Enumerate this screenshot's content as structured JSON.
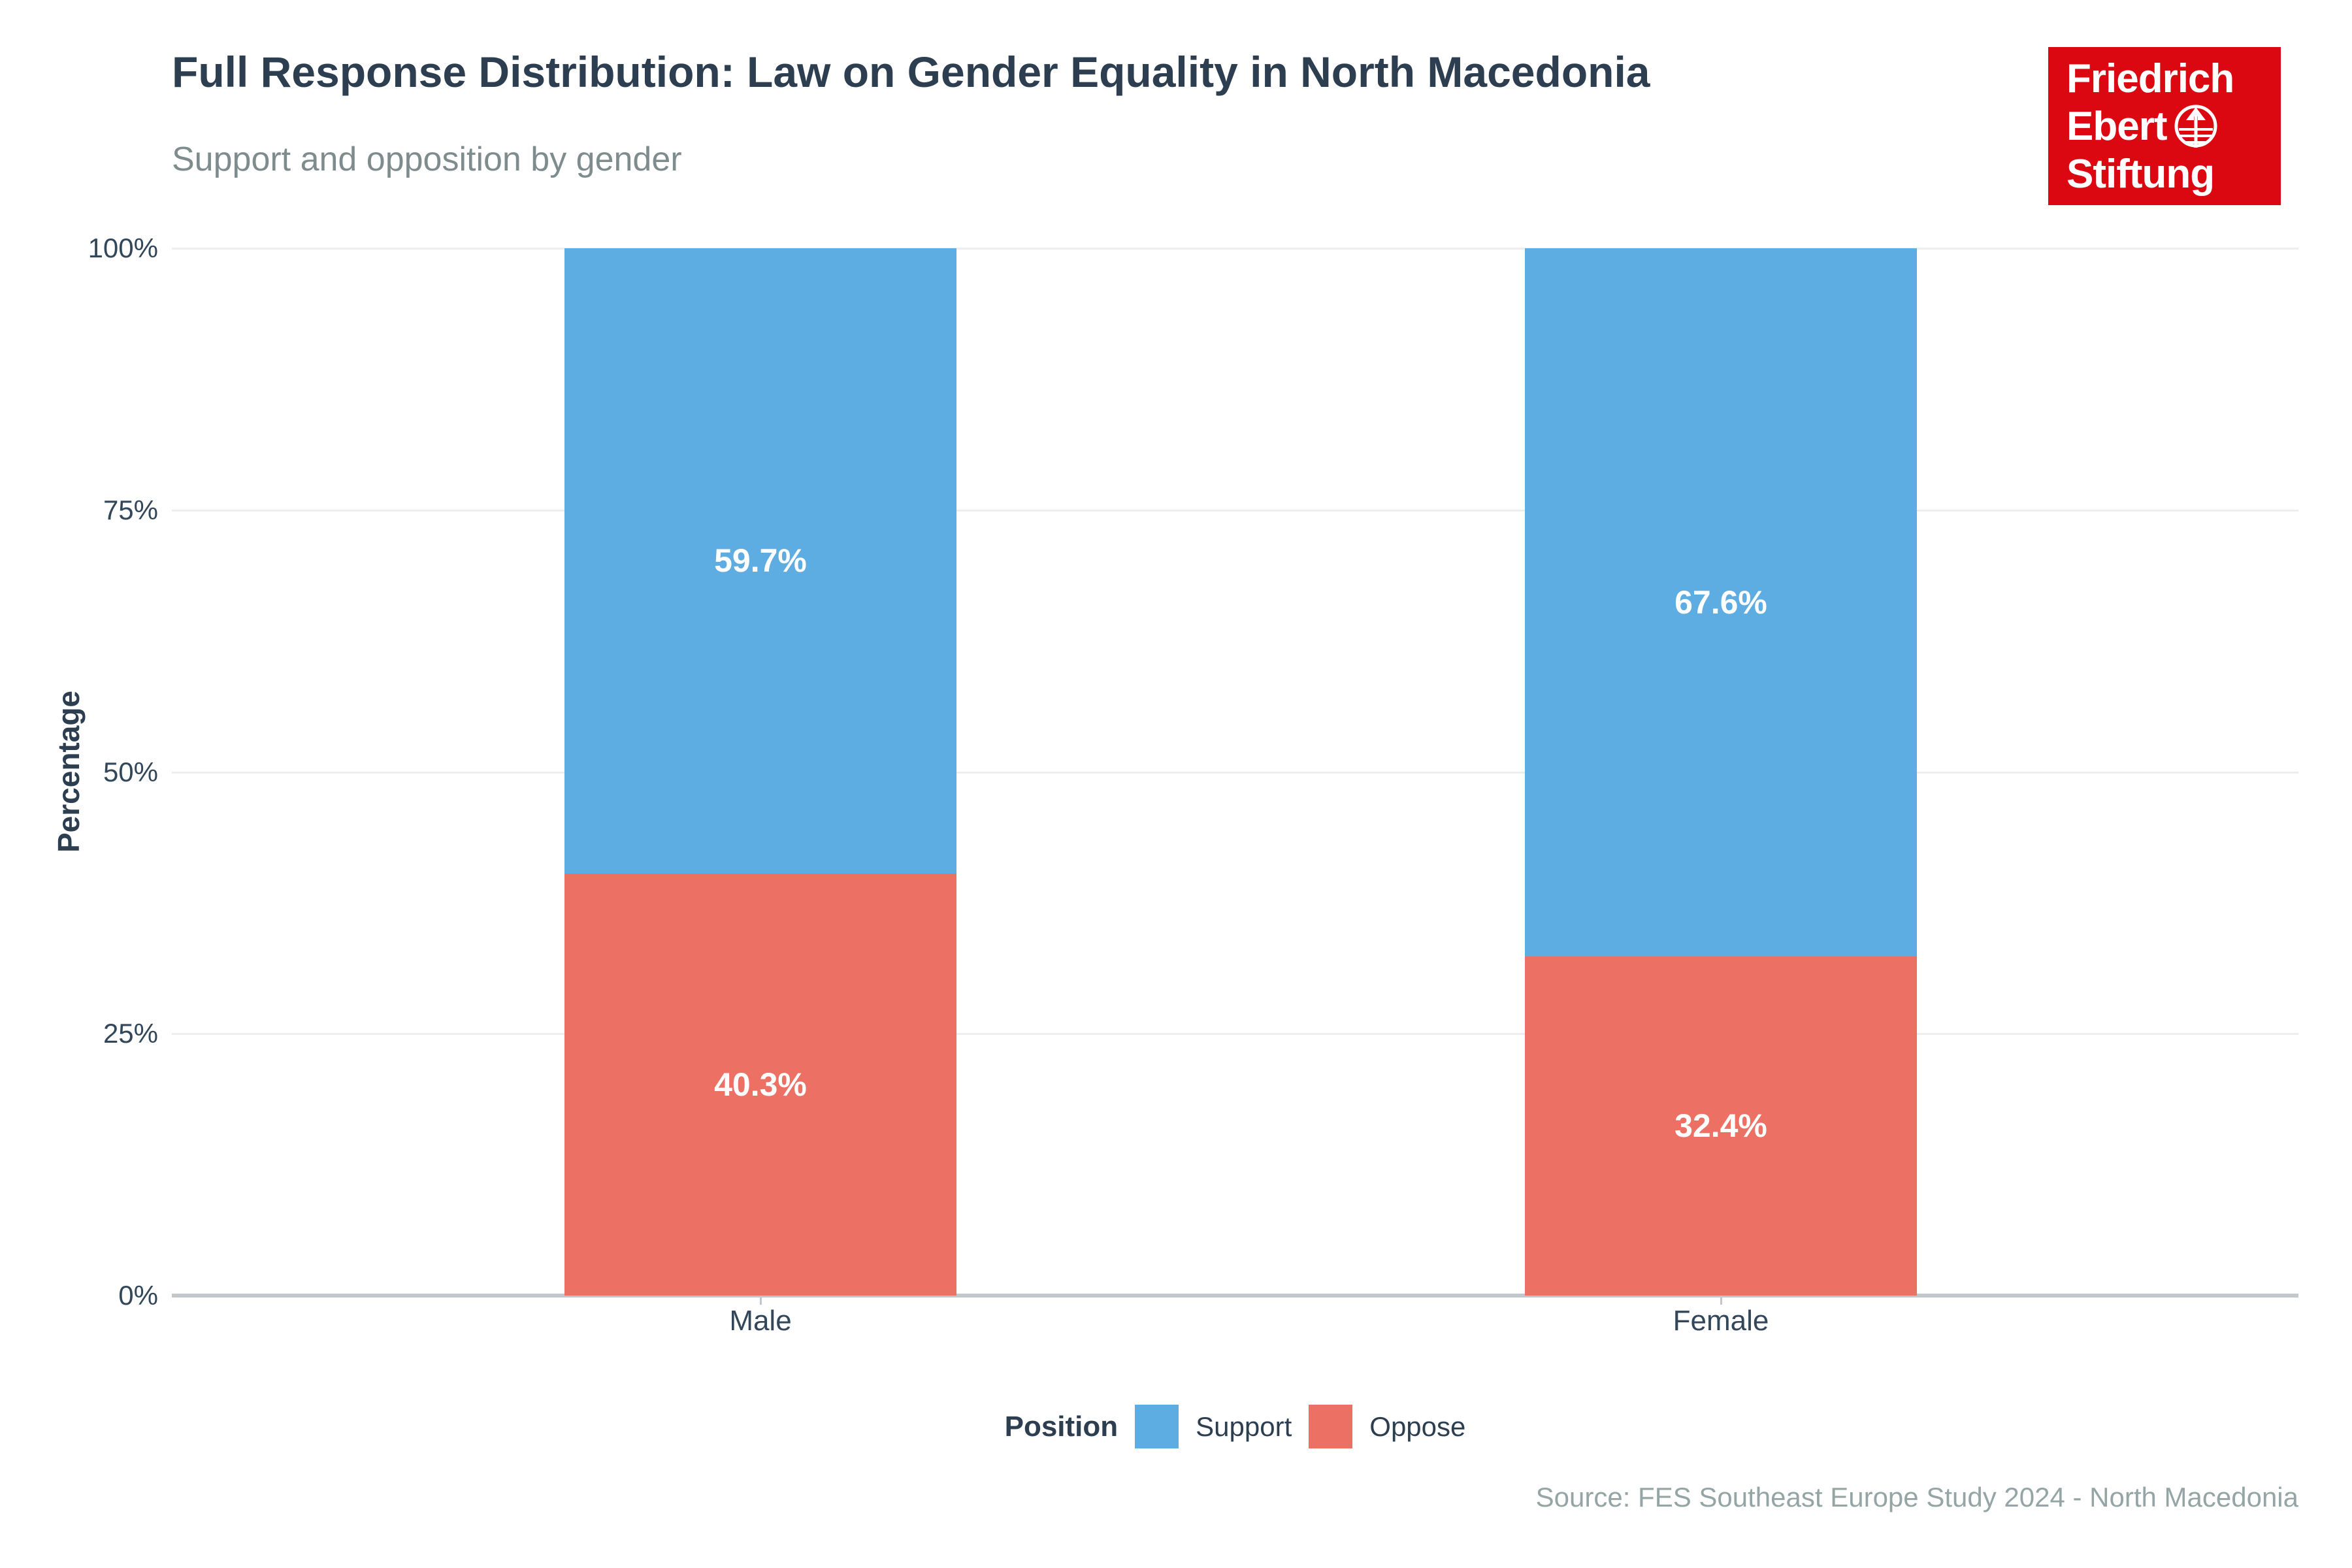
{
  "header": {
    "title": "Full Response Distribution: Law on Gender Equality in North Macedonia",
    "subtitle": "Support and opposition by gender"
  },
  "logo": {
    "bg_color": "#DB0812",
    "lines": [
      "Friedrich",
      "Ebert",
      "Stiftung"
    ]
  },
  "chart_data": {
    "type": "bar",
    "stacked": true,
    "title": "Full Response Distribution: Law on Gender Equality in North Macedonia",
    "subtitle": "Support and opposition by gender",
    "categories": [
      "Male",
      "Female"
    ],
    "series": [
      {
        "name": "Support",
        "values": [
          59.7,
          67.6
        ],
        "labels": [
          "59.7%",
          "67.6%"
        ],
        "color": "#5DADE2"
      },
      {
        "name": "Oppose",
        "values": [
          40.3,
          32.4
        ],
        "labels": [
          "40.3%",
          "32.4%"
        ],
        "color": "#EC7063"
      }
    ],
    "xlabel": "",
    "ylabel": "Percentage",
    "ylim": [
      0,
      100
    ],
    "yticks": [
      {
        "value": 0,
        "label": "0%"
      },
      {
        "value": 25,
        "label": "25%"
      },
      {
        "value": 50,
        "label": "50%"
      },
      {
        "value": 75,
        "label": "75%"
      },
      {
        "value": 100,
        "label": "100%"
      }
    ],
    "grid": "horizontal",
    "legend_position": "bottom"
  },
  "legend": {
    "title": "Position"
  },
  "footer": {
    "source": "Source: FES Southeast Europe Study 2024 - North Macedonia"
  }
}
